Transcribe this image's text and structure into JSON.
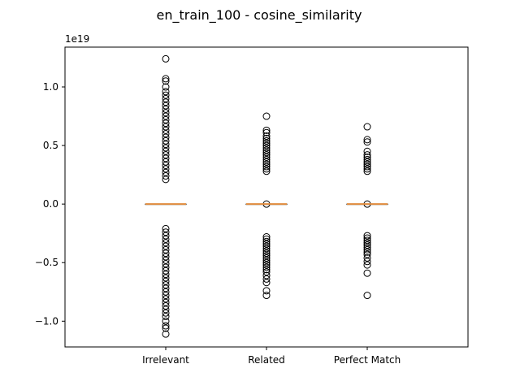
{
  "chart_data": {
    "type": "box",
    "title": "en_train_100 - cosine_similarity",
    "xlabel": "",
    "ylabel": "",
    "y_scale_label": "1e19",
    "ylim": [
      -1.22,
      1.34
    ],
    "yticks": [
      -1.0,
      -0.5,
      0.0,
      0.5,
      1.0
    ],
    "ytick_labels": [
      "−1.0",
      "−0.5",
      "0.0",
      "0.5",
      "1.0"
    ],
    "categories": [
      "Irrelevant",
      "Related",
      "Perfect Match"
    ],
    "colors": {
      "median": "#e08b3d",
      "box": "#000000",
      "outlier": "#000000"
    },
    "series": [
      {
        "q1": 0.0,
        "median": 0.0,
        "q3": 0.0,
        "whisker_low": 0.0,
        "whisker_high": 0.0,
        "outliers_upper": [
          1.24,
          1.07,
          1.05,
          1.0,
          0.96,
          0.93,
          0.9,
          0.87,
          0.84,
          0.81,
          0.78,
          0.75,
          0.72,
          0.69,
          0.66,
          0.63,
          0.6,
          0.57,
          0.54,
          0.51,
          0.48,
          0.45,
          0.42,
          0.39,
          0.36,
          0.33,
          0.3,
          0.27,
          0.24,
          0.21
        ],
        "outliers_lower": [
          -0.21,
          -0.24,
          -0.27,
          -0.3,
          -0.33,
          -0.36,
          -0.39,
          -0.42,
          -0.45,
          -0.48,
          -0.51,
          -0.54,
          -0.57,
          -0.6,
          -0.63,
          -0.66,
          -0.69,
          -0.72,
          -0.75,
          -0.78,
          -0.81,
          -0.84,
          -0.87,
          -0.9,
          -0.93,
          -0.96,
          -1.0,
          -1.04,
          -1.06,
          -1.11
        ]
      },
      {
        "q1": 0.0,
        "median": 0.0,
        "q3": 0.0,
        "whisker_low": 0.0,
        "whisker_high": 0.0,
        "outliers_upper": [
          0.75,
          0.63,
          0.61,
          0.58,
          0.56,
          0.54,
          0.52,
          0.5,
          0.48,
          0.46,
          0.44,
          0.42,
          0.4,
          0.38,
          0.36,
          0.34,
          0.32,
          0.3,
          0.28,
          0.0
        ],
        "outliers_lower": [
          -0.28,
          -0.3,
          -0.32,
          -0.34,
          -0.36,
          -0.38,
          -0.4,
          -0.42,
          -0.44,
          -0.46,
          -0.48,
          -0.5,
          -0.52,
          -0.54,
          -0.56,
          -0.58,
          -0.61,
          -0.64,
          -0.67,
          -0.74,
          -0.78
        ]
      },
      {
        "q1": 0.0,
        "median": 0.0,
        "q3": 0.0,
        "whisker_low": 0.0,
        "whisker_high": 0.0,
        "outliers_upper": [
          0.66,
          0.55,
          0.53,
          0.45,
          0.42,
          0.4,
          0.38,
          0.36,
          0.34,
          0.32,
          0.3,
          0.28,
          0.0
        ],
        "outliers_lower": [
          -0.27,
          -0.29,
          -0.31,
          -0.33,
          -0.35,
          -0.37,
          -0.39,
          -0.41,
          -0.43,
          -0.46,
          -0.49,
          -0.52,
          -0.59,
          -0.78
        ]
      }
    ],
    "grid": false,
    "legend": "none"
  }
}
